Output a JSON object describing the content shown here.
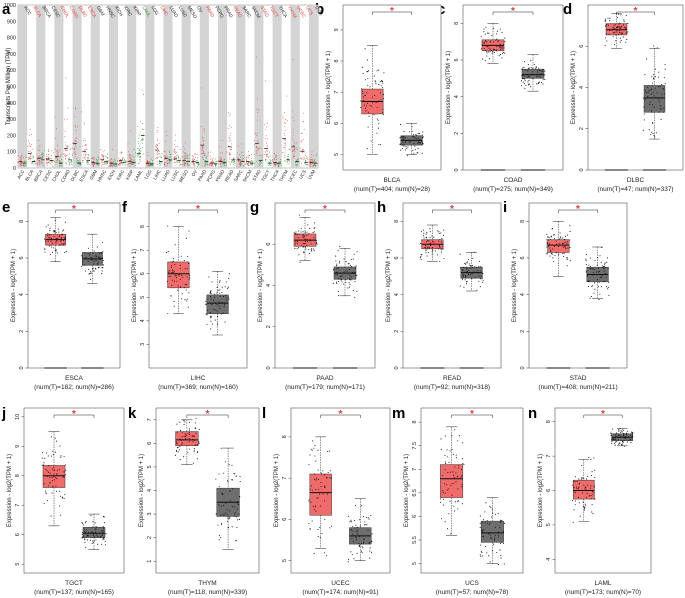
{
  "figure": {
    "panel_letters": [
      "a",
      "b",
      "c",
      "d",
      "e",
      "f",
      "g",
      "h",
      "i",
      "j",
      "k",
      "l",
      "m",
      "n"
    ],
    "colors": {
      "tumor": "#f26b6b",
      "normal": "#6e6e6e",
      "significance": "#e23a3a",
      "strip": "#d4d4d4"
    }
  },
  "chart_data": [
    {
      "panel": "a",
      "type": "scatter",
      "title": "",
      "ylabel": "Transcripts Per Million (TPM)",
      "ylim": [
        0,
        1000
      ],
      "yticks": [
        0,
        100,
        200,
        300,
        400,
        500,
        600,
        700,
        800,
        900,
        1000
      ],
      "cancer_types": [
        "ACC",
        "BLCA",
        "BRCA",
        "CESC",
        "CHOL",
        "COAD",
        "DLBC",
        "ESCA",
        "GBM",
        "HNSC",
        "KICH",
        "KIRC",
        "KIRP",
        "LAML",
        "LGG",
        "LIHC",
        "LUAD",
        "LUSC",
        "MESO",
        "OV",
        "PAAD",
        "PCPG",
        "PRAD",
        "READ",
        "SARC",
        "SKCM",
        "STAD",
        "TGCT",
        "THCA",
        "THYM",
        "UCEC",
        "UCS",
        "UVM"
      ],
      "label_colors": [
        "black",
        "red",
        "black",
        "black",
        "red",
        "red",
        "red",
        "red",
        "black",
        "black",
        "black",
        "black",
        "black",
        "green",
        "black",
        "red",
        "black",
        "black",
        "black",
        "black",
        "red",
        "black",
        "black",
        "red",
        "black",
        "black",
        "red",
        "red",
        "black",
        "red",
        "red",
        "red",
        "black"
      ],
      "tumor_medians": [
        40,
        90,
        60,
        55,
        70,
        120,
        150,
        100,
        35,
        50,
        30,
        45,
        40,
        90,
        30,
        110,
        60,
        55,
        45,
        40,
        140,
        30,
        40,
        130,
        50,
        40,
        150,
        120,
        35,
        180,
        130,
        100,
        35
      ],
      "normal_medians": [
        30,
        40,
        50,
        45,
        30,
        50,
        30,
        45,
        30,
        40,
        25,
        35,
        35,
        200,
        25,
        40,
        50,
        45,
        40,
        35,
        40,
        25,
        35,
        50,
        40,
        30,
        45,
        30,
        30,
        50,
        40,
        35,
        30
      ]
    },
    {
      "panel": "b",
      "type": "box",
      "cancer": "BLCA",
      "caption": "(num(T)=404; num(N)=28)",
      "ylabel": "Expression - log2(TPM + 1)",
      "ylim": [
        4.5,
        9.8
      ],
      "yticks": [
        5,
        6,
        7,
        8,
        9
      ],
      "tumor": {
        "min": 5.0,
        "q1": 6.3,
        "median": 6.7,
        "q3": 7.1,
        "max": 8.5
      },
      "normal": {
        "min": 5.0,
        "q1": 5.3,
        "median": 5.45,
        "q3": 5.6,
        "max": 6.0
      },
      "significant": true,
      "star": "*"
    },
    {
      "panel": "c",
      "type": "box",
      "cancer": "COAD",
      "caption": "(num(T)=275; num(N)=349)",
      "ylabel": "Expression - log2(TPM + 1)",
      "ylim": [
        0,
        9
      ],
      "yticks": [
        0,
        2,
        4,
        6,
        8
      ],
      "tumor": {
        "min": 5.8,
        "q1": 6.5,
        "median": 6.8,
        "q3": 7.1,
        "max": 8.0
      },
      "normal": {
        "min": 4.3,
        "q1": 5.0,
        "median": 5.2,
        "q3": 5.5,
        "max": 6.3
      },
      "baseline": true,
      "significant": true,
      "star": "*"
    },
    {
      "panel": "d",
      "type": "box",
      "cancer": "DLBC",
      "caption": "(num(T)=47; num(N)=337)",
      "ylabel": "Expression - log2(TPM + 1)",
      "ylim": [
        0,
        8
      ],
      "yticks": [
        0,
        2,
        4,
        6
      ],
      "tumor": {
        "min": 5.9,
        "q1": 6.55,
        "median": 6.8,
        "q3": 7.1,
        "max": 7.6
      },
      "normal": {
        "min": 1.5,
        "q1": 2.8,
        "median": 3.5,
        "q3": 4.1,
        "max": 5.9
      },
      "baseline": true,
      "significant": true,
      "star": "*"
    },
    {
      "panel": "e",
      "type": "box",
      "cancer": "ESCA",
      "caption": "(num(T)=182; num(N)=286)",
      "ylabel": "Expression - log2(TPM + 1)",
      "ylim": [
        0,
        9
      ],
      "yticks": [
        0,
        2,
        4,
        6,
        8
      ],
      "tumor": {
        "min": 5.8,
        "q1": 6.7,
        "median": 7.0,
        "q3": 7.3,
        "max": 8.2
      },
      "normal": {
        "min": 4.6,
        "q1": 5.6,
        "median": 5.95,
        "q3": 6.3,
        "max": 7.3
      },
      "baseline": true,
      "significant": true,
      "star": "*"
    },
    {
      "panel": "f",
      "type": "box",
      "cancer": "LIHC",
      "caption": "(num(T)=369; num(N)=160)",
      "ylabel": "Expression - log2(TPM + 1)",
      "ylim": [
        2,
        9
      ],
      "yticks": [
        3,
        4,
        5,
        6,
        7,
        8
      ],
      "tumor": {
        "min": 4.3,
        "q1": 5.4,
        "median": 6.0,
        "q3": 6.5,
        "max": 8.0
      },
      "normal": {
        "min": 3.4,
        "q1": 4.3,
        "median": 4.75,
        "q3": 5.1,
        "max": 6.1
      },
      "significant": true,
      "star": "*"
    },
    {
      "panel": "g",
      "type": "box",
      "cancer": "PAAD",
      "caption": "(num(T)=179; num(N)=171)",
      "ylabel": "Expression - log2(TPM + 1)",
      "ylim": [
        0,
        8
      ],
      "yticks": [
        0,
        2,
        4,
        6
      ],
      "tumor": {
        "min": 5.2,
        "q1": 5.9,
        "median": 6.2,
        "q3": 6.5,
        "max": 7.3
      },
      "normal": {
        "min": 3.5,
        "q1": 4.3,
        "median": 4.6,
        "q3": 4.9,
        "max": 5.8
      },
      "baseline": true,
      "significant": true,
      "star": "*"
    },
    {
      "panel": "h",
      "type": "box",
      "cancer": "READ",
      "caption": "(num(T)=92; num(N)=318)",
      "ylabel": "Expression - log2(TPM + 1)",
      "ylim": [
        0,
        9
      ],
      "yticks": [
        0,
        2,
        4,
        6,
        8
      ],
      "tumor": {
        "min": 5.8,
        "q1": 6.5,
        "median": 6.75,
        "q3": 7.0,
        "max": 7.8
      },
      "normal": {
        "min": 4.2,
        "q1": 4.9,
        "median": 5.2,
        "q3": 5.5,
        "max": 6.3
      },
      "baseline": true,
      "significant": true,
      "star": "*"
    },
    {
      "panel": "i",
      "type": "box",
      "cancer": "STAD",
      "caption": "(num(T)=408; num(N)=211)",
      "ylabel": "Expression - log2(TPM + 1)",
      "ylim": [
        0,
        9
      ],
      "yticks": [
        0,
        2,
        4,
        6,
        8
      ],
      "tumor": {
        "min": 5.0,
        "q1": 6.3,
        "median": 6.7,
        "q3": 7.0,
        "max": 8.0
      },
      "normal": {
        "min": 3.8,
        "q1": 4.7,
        "median": 5.1,
        "q3": 5.5,
        "max": 6.6
      },
      "baseline": true,
      "significant": true,
      "star": "*"
    },
    {
      "panel": "j",
      "type": "box",
      "cancer": "TGCT",
      "caption": "(num(T)=137; num(N)=165)",
      "ylabel": "Expression - log2(TPM + 1)",
      "ylim": [
        4.7,
        10.3
      ],
      "yticks": [
        5,
        6,
        7,
        8,
        9,
        10
      ],
      "tumor": {
        "min": 6.3,
        "q1": 7.6,
        "median": 8.0,
        "q3": 8.35,
        "max": 9.5
      },
      "normal": {
        "min": 5.5,
        "q1": 5.9,
        "median": 6.05,
        "q3": 6.25,
        "max": 6.7
      },
      "significant": true,
      "star": "*"
    },
    {
      "panel": "k",
      "type": "box",
      "cancer": "THYM",
      "caption": "(num(T)=118; num(N)=339)",
      "ylabel": "Expression - log2(TPM + 1)",
      "ylim": [
        0.5,
        7.5
      ],
      "yticks": [
        1,
        2,
        3,
        4,
        5,
        6,
        7
      ],
      "tumor": {
        "min": 5.1,
        "q1": 5.9,
        "median": 6.15,
        "q3": 6.5,
        "max": 7.0
      },
      "normal": {
        "min": 1.5,
        "q1": 2.9,
        "median": 3.5,
        "q3": 4.1,
        "max": 5.8
      },
      "significant": true,
      "star": "*"
    },
    {
      "panel": "l",
      "type": "box",
      "cancer": "UCEC",
      "caption": "(num(T)=174; num(N)=91)",
      "ylabel": "Expression - log2(TPM + 1)",
      "ylim": [
        4.7,
        8.7
      ],
      "yticks": [
        5,
        6,
        7,
        8
      ],
      "tumor": {
        "min": 5.3,
        "q1": 6.1,
        "median": 6.65,
        "q3": 7.1,
        "max": 8.0
      },
      "normal": {
        "min": 5.0,
        "q1": 5.4,
        "median": 5.6,
        "q3": 5.8,
        "max": 6.5
      },
      "significant": true,
      "star": "*"
    },
    {
      "panel": "m",
      "type": "box",
      "cancer": "UCS",
      "caption": "(num(T)=57; num(N)=78)",
      "ylabel": "Expression - log2(TPM + 1)",
      "ylim": [
        4.8,
        8.3
      ],
      "yticks": [
        5.0,
        5.5,
        6.0,
        6.5,
        7.0,
        7.5,
        8.0
      ],
      "tumor": {
        "min": 5.6,
        "q1": 6.4,
        "median": 6.8,
        "q3": 7.1,
        "max": 7.9
      },
      "normal": {
        "min": 5.0,
        "q1": 5.45,
        "median": 5.65,
        "q3": 5.9,
        "max": 6.4
      },
      "significant": true,
      "star": "*"
    },
    {
      "panel": "n",
      "type": "box",
      "cancer": "LAML",
      "caption": "(num(T)=173; num(N)=70)",
      "ylabel": "Expression - log2(TPM + 1)",
      "ylim": [
        3.6,
        8.4
      ],
      "yticks": [
        4,
        5,
        6,
        7,
        8
      ],
      "tumor": {
        "min": 5.1,
        "q1": 5.75,
        "median": 6.0,
        "q3": 6.3,
        "max": 6.9
      },
      "normal": {
        "min": 7.3,
        "q1": 7.45,
        "median": 7.55,
        "q3": 7.65,
        "max": 7.8
      },
      "significant": true,
      "star": "*"
    }
  ]
}
